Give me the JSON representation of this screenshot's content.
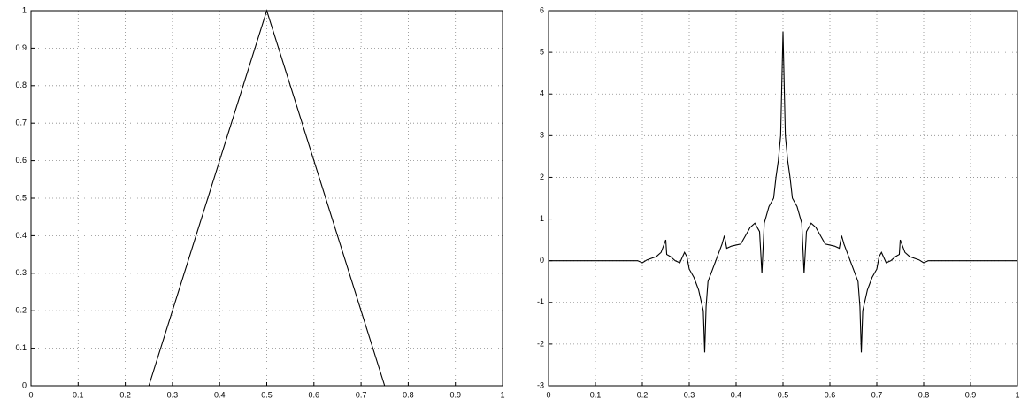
{
  "chart_data": [
    {
      "type": "line",
      "grid": true,
      "xlim": [
        0,
        1
      ],
      "ylim": [
        0,
        1
      ],
      "xticks": [
        0,
        0.1,
        0.2,
        0.3,
        0.4,
        0.5,
        0.6,
        0.7,
        0.8,
        0.9,
        1
      ],
      "yticks": [
        0,
        0.1,
        0.2,
        0.3,
        0.4,
        0.5,
        0.6,
        0.7,
        0.8,
        0.9,
        1
      ],
      "color": "#000000",
      "x": [
        0,
        0.25,
        0.5,
        0.75,
        1
      ],
      "values": [
        0,
        0,
        1,
        0,
        0
      ]
    },
    {
      "type": "line",
      "grid": true,
      "xlim": [
        0,
        1
      ],
      "ylim": [
        -3,
        6
      ],
      "xticks": [
        0,
        0.1,
        0.2,
        0.3,
        0.4,
        0.5,
        0.6,
        0.7,
        0.8,
        0.9,
        1
      ],
      "yticks": [
        -3,
        -2,
        -1,
        0,
        1,
        2,
        3,
        4,
        5,
        6
      ],
      "color": "#000000",
      "x": [
        0,
        0.19,
        0.2,
        0.21,
        0.23,
        0.24,
        0.25,
        0.252,
        0.26,
        0.27,
        0.28,
        0.29,
        0.295,
        0.3,
        0.31,
        0.32,
        0.33,
        0.333,
        0.336,
        0.34,
        0.35,
        0.36,
        0.37,
        0.375,
        0.38,
        0.39,
        0.41,
        0.42,
        0.43,
        0.44,
        0.45,
        0.455,
        0.46,
        0.47,
        0.48,
        0.485,
        0.49,
        0.495,
        0.5,
        0.505,
        0.51,
        0.515,
        0.52,
        0.53,
        0.54,
        0.545,
        0.55,
        0.56,
        0.57,
        0.58,
        0.59,
        0.61,
        0.62,
        0.625,
        0.63,
        0.64,
        0.65,
        0.66,
        0.664,
        0.667,
        0.67,
        0.68,
        0.69,
        0.7,
        0.705,
        0.71,
        0.72,
        0.73,
        0.74,
        0.748,
        0.75,
        0.76,
        0.77,
        0.79,
        0.8,
        0.81,
        1
      ],
      "values": [
        0,
        0,
        -0.05,
        0.02,
        0.1,
        0.2,
        0.5,
        0.15,
        0.1,
        0,
        -0.05,
        0.2,
        0.1,
        -0.2,
        -0.4,
        -0.7,
        -1.2,
        -2.2,
        -1.1,
        -0.5,
        -0.2,
        0.1,
        0.4,
        0.6,
        0.3,
        0.35,
        0.4,
        0.6,
        0.8,
        0.9,
        0.7,
        -0.3,
        0.9,
        1.3,
        1.5,
        2,
        2.4,
        3,
        5.5,
        3,
        2.4,
        2,
        1.5,
        1.3,
        0.9,
        -0.3,
        0.7,
        0.9,
        0.8,
        0.6,
        0.4,
        0.35,
        0.3,
        0.6,
        0.4,
        0.1,
        -0.2,
        -0.5,
        -1.1,
        -2.2,
        -1.2,
        -0.7,
        -0.4,
        -0.2,
        0.1,
        0.2,
        -0.05,
        0,
        0.1,
        0.15,
        0.5,
        0.2,
        0.1,
        0.02,
        -0.05,
        0,
        0
      ]
    }
  ]
}
